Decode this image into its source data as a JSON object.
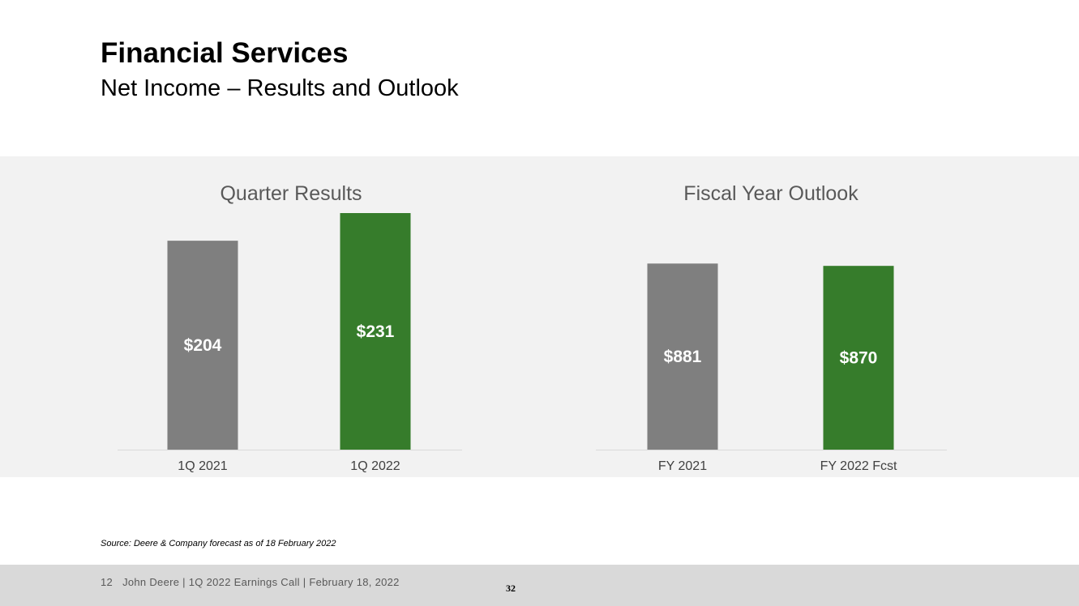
{
  "slide": {
    "title": "Financial Services",
    "subtitle": "Net Income – Results and Outlook",
    "source": "Source: Deere & Company forecast as of 18 February 2022",
    "footer_page": "12",
    "footer_text": "John Deere | 1Q 2022 Earnings Call | February 18, 2022",
    "footer_center": "32"
  },
  "colors": {
    "prior": "#7f7f7f",
    "current": "#367c2b",
    "panel_bg": "#f2f2f2"
  },
  "chart_data": [
    {
      "type": "bar",
      "title": "Quarter Results",
      "categories": [
        "1Q 2021",
        "1Q 2022"
      ],
      "values": [
        204,
        231
      ],
      "labels": [
        "$204",
        "$231"
      ],
      "ylim": [
        0,
        231
      ],
      "grid": false,
      "legend": "none"
    },
    {
      "type": "bar",
      "title": "Fiscal Year Outlook",
      "categories": [
        "FY 2021",
        "FY 2022 Fcst"
      ],
      "values": [
        881,
        870
      ],
      "labels": [
        "$881",
        "$870"
      ],
      "ylim": [
        0,
        1120
      ],
      "grid": false,
      "legend": "none"
    }
  ]
}
